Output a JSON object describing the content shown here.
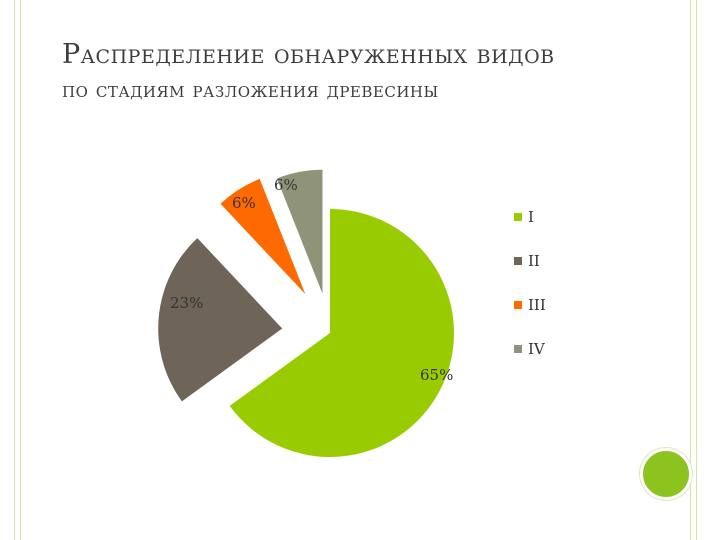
{
  "slide": {
    "title_line1": "Распределение обнаруженных видов",
    "title_line2": "по стадиям разложения древесины"
  },
  "chart_data": {
    "type": "pie",
    "exploded": true,
    "categories": [
      "I",
      "II",
      "III",
      "IV"
    ],
    "values": [
      65,
      23,
      6,
      6
    ],
    "labels": [
      "65%",
      "23%",
      "6%",
      "6%"
    ],
    "colors": [
      "#99cc00",
      "#6e6457",
      "#ff6a00",
      "#8f9479"
    ],
    "legend": "right"
  },
  "theme": {
    "accent": "#8dc31e",
    "frame_line": "#cfe6a6"
  }
}
